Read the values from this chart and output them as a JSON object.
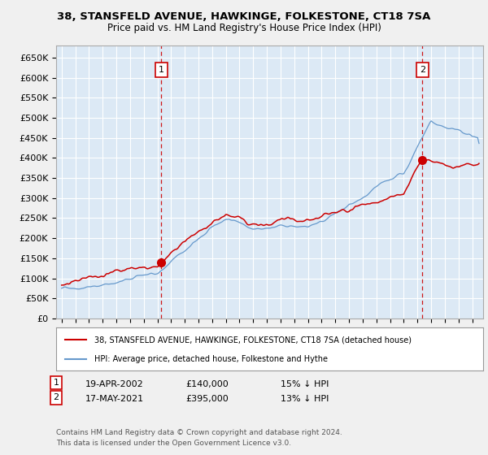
{
  "title": "38, STANSFELD AVENUE, HAWKINGE, FOLKESTONE, CT18 7SA",
  "subtitle": "Price paid vs. HM Land Registry's House Price Index (HPI)",
  "ylabel_ticks": [
    "£0",
    "£50K",
    "£100K",
    "£150K",
    "£200K",
    "£250K",
    "£300K",
    "£350K",
    "£400K",
    "£450K",
    "£500K",
    "£550K",
    "£600K",
    "£650K"
  ],
  "ytick_values": [
    0,
    50000,
    100000,
    150000,
    200000,
    250000,
    300000,
    350000,
    400000,
    450000,
    500000,
    550000,
    600000,
    650000
  ],
  "x_start_year": 1995,
  "x_end_year": 2025,
  "sale1_year": 2002.29,
  "sale1_price": 140000,
  "sale1_label": "1",
  "sale1_date": "19-APR-2002",
  "sale1_hpi_diff": "15% ↓ HPI",
  "sale2_year": 2021.37,
  "sale2_price": 395000,
  "sale2_label": "2",
  "sale2_date": "17-MAY-2021",
  "sale2_hpi_diff": "13% ↓ HPI",
  "red_line_color": "#cc0000",
  "blue_line_color": "#6699cc",
  "vline_color": "#cc0000",
  "chart_bg_color": "#dce9f5",
  "fig_bg_color": "#f0f0f0",
  "grid_color": "#ffffff",
  "legend_label_red": "38, STANSFELD AVENUE, HAWKINGE, FOLKESTONE, CT18 7SA (detached house)",
  "legend_label_blue": "HPI: Average price, detached house, Folkestone and Hythe",
  "footer_text": "Contains HM Land Registry data © Crown copyright and database right 2024.\nThis data is licensed under the Open Government Licence v3.0.",
  "sale1_price_str": "£140,000",
  "sale2_price_str": "£395,000"
}
